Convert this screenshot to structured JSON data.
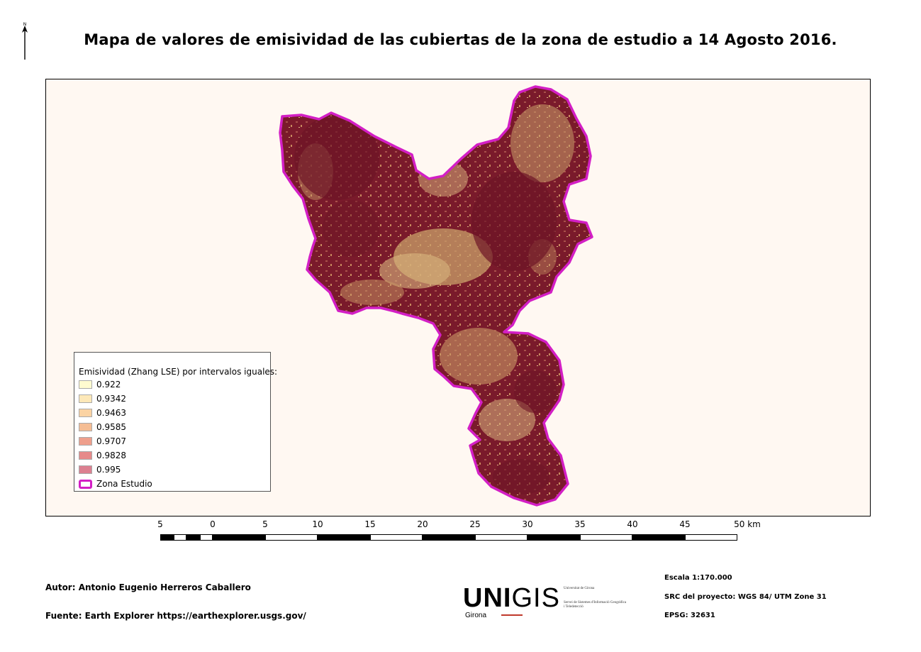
{
  "title": "Mapa de valores de emisividad de las cubiertas de la zona de estudio a 14 Agosto 2016.",
  "north_arrow": {
    "icon": "north-arrow-icon",
    "label": "N"
  },
  "legend": {
    "title": "Emisividad (Zhang LSE) por intervalos iguales:",
    "items": [
      {
        "label": "0.922",
        "color": "#fffbd0"
      },
      {
        "label": "0.9342",
        "color": "#fde8b8"
      },
      {
        "label": "0.9463",
        "color": "#fbd3a3"
      },
      {
        "label": "0.9585",
        "color": "#f5bd94"
      },
      {
        "label": "0.9707",
        "color": "#ee9f8c"
      },
      {
        "label": "0.9828",
        "color": "#e68a8a"
      },
      {
        "label": "0.995",
        "color": "#dc8090"
      }
    ],
    "zone_label": "Zona Estudio",
    "zone_color": "#d31fc5"
  },
  "map": {
    "background": "#fff8f2",
    "dark_color": "#7a1a2b",
    "light_color": "#d9b67f"
  },
  "scalebar": {
    "labels": [
      "5",
      "0",
      "5",
      "10",
      "15",
      "20",
      "25",
      "30",
      "35",
      "40",
      "45",
      "50 km"
    ]
  },
  "footer": {
    "author": "Autor: Antonio Eugenio Herreros Caballero",
    "source": "Fuente:  Earth Explorer https://earthexplorer.usgs.gov/",
    "scale": "Escala 1:170.000",
    "crs": "SRC del proyecto: WGS 84/ UTM Zone 31",
    "epsg": "EPSG: 32631",
    "logo_main_a": "UNI",
    "logo_main_b": "GIS",
    "logo_sub": "Girona",
    "logo_udg_1": "Universitat de Girona",
    "logo_udg_2": "Servei de Sistemes d'Informació Geogràfica i Teledetecció"
  }
}
